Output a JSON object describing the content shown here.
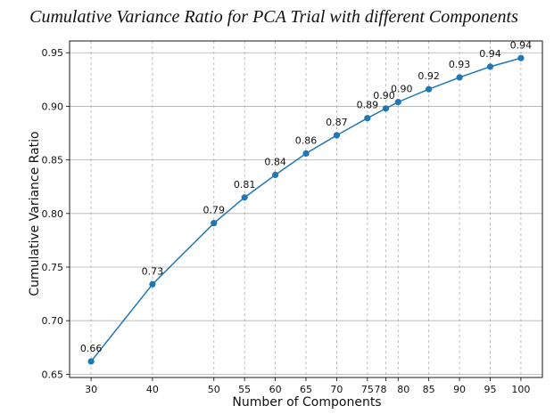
{
  "chart_data": {
    "type": "line",
    "title": "Cumulative Variance Ratio for PCA Trial with different Components",
    "xlabel": "Number of Components",
    "ylabel": "Cumulative Variance Ratio",
    "x": [
      30,
      40,
      50,
      55,
      60,
      65,
      70,
      75,
      78,
      80,
      85,
      90,
      95,
      100
    ],
    "y": [
      0.662,
      0.734,
      0.791,
      0.815,
      0.836,
      0.856,
      0.873,
      0.889,
      0.898,
      0.904,
      0.916,
      0.927,
      0.937,
      0.945
    ],
    "data_labels": [
      "0.66",
      "0.73",
      "0.79",
      "0.81",
      "0.84",
      "0.86",
      "0.87",
      "0.89",
      "0.90",
      "0.90",
      "0.92",
      "0.93",
      "0.94",
      "0.94"
    ],
    "x_ticks": [
      30,
      40,
      50,
      55,
      60,
      65,
      70,
      75,
      78,
      80,
      85,
      90,
      95,
      100
    ],
    "x_tick_labels": [
      "30",
      "40",
      "50",
      "55",
      "60",
      "65",
      "70",
      "75",
      "78",
      "80",
      "85",
      "90",
      "95",
      "100"
    ],
    "y_ticks": [
      0.65,
      0.7,
      0.75,
      0.8,
      0.85,
      0.9,
      0.95
    ],
    "y_tick_labels": [
      "0.65",
      "0.70",
      "0.75",
      "0.80",
      "0.85",
      "0.90",
      "0.95"
    ],
    "xlim": [
      26.5,
      103.5
    ],
    "ylim": [
      0.647,
      0.961
    ],
    "grid": true,
    "marker": "circle",
    "line_color": "#1f77b4",
    "grid_color": "#b0b0b0"
  }
}
